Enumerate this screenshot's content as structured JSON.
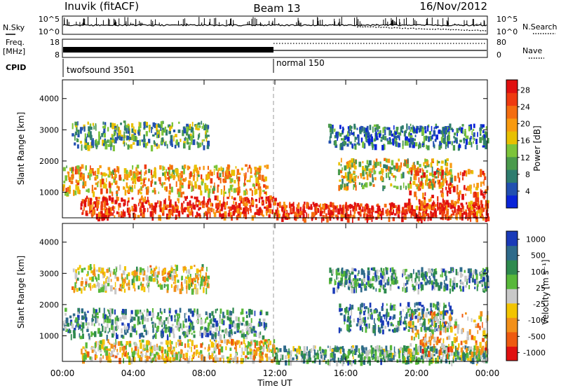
{
  "header": {
    "station": "Inuvik (fitACF)",
    "beam": "Beam 13",
    "date": "16/Nov/2012"
  },
  "strips": {
    "nsky_label": "N.Sky",
    "nsky_ticks": [
      "10^5",
      "10^0"
    ],
    "nsearch_label": "N.Search",
    "freq_label_1": "Freq.",
    "freq_label_2": "[MHz]",
    "freq_ticks": [
      "18",
      "8"
    ],
    "nave_label": "Nave",
    "nave_ticks": [
      "80",
      "0"
    ],
    "cpid_label": "CPID",
    "cpid_segments": [
      {
        "label": "twofsound 3501",
        "start_hour": 0,
        "end_hour": 12
      },
      {
        "label": "normal 150",
        "start_hour": 12,
        "end_hour": 24
      }
    ]
  },
  "chart_data": [
    {
      "type": "heatmap",
      "panel": "power",
      "ylabel": "Slant Range [km]",
      "ylim": [
        180,
        4600
      ],
      "yticks": [
        1000,
        2000,
        3000,
        4000
      ],
      "xlim_hours": [
        0,
        24
      ],
      "colorbar": {
        "label": "Power [dB]",
        "tick_labels": [
          "4",
          "8",
          "12",
          "16",
          "20",
          "24",
          "28"
        ],
        "colors": [
          "#0a24d8",
          "#2250b0",
          "#2e7c6e",
          "#4a9a4c",
          "#7cc43a",
          "#e8c000",
          "#f89a10",
          "#f46d10",
          "#ee3a10",
          "#e01010"
        ]
      },
      "echo_regions": [
        {
          "from_hour": 0.0,
          "to_hour": 11.5,
          "range_km": [
            1000,
            1900
          ],
          "level": 0.62
        },
        {
          "from_hour": 0.5,
          "to_hour": 8.2,
          "range_km": [
            2500,
            3300
          ],
          "level": 0.35
        },
        {
          "from_hour": 1.0,
          "to_hour": 12.0,
          "range_km": [
            250,
            900
          ],
          "level": 0.85
        },
        {
          "from_hour": 12.0,
          "to_hour": 24.0,
          "range_km": [
            200,
            700
          ],
          "level": 0.9
        },
        {
          "from_hour": 15.5,
          "to_hour": 22.0,
          "range_km": [
            1200,
            2100
          ],
          "level": 0.5
        },
        {
          "from_hour": 15.0,
          "to_hour": 24.0,
          "range_km": [
            2500,
            3200
          ],
          "level": 0.25
        },
        {
          "from_hour": 19.5,
          "to_hour": 24.0,
          "range_km": [
            400,
            1800
          ],
          "level": 0.8
        }
      ]
    },
    {
      "type": "heatmap",
      "panel": "velocity",
      "ylabel": "Slant Range [km]",
      "ylim": [
        180,
        4600
      ],
      "yticks": [
        1000,
        2000,
        3000,
        4000
      ],
      "xlim_hours": [
        0,
        24
      ],
      "xtick_labels": [
        "00:00",
        "04:00",
        "08:00",
        "12:00",
        "16:00",
        "20:00",
        "00:00"
      ],
      "xlabel": "Time UT",
      "colorbar": {
        "label": "Velocity [m s⁻¹]",
        "tick_labels": [
          "1000",
          "500",
          "100",
          "25",
          "-25",
          "-100",
          "-500",
          "-1000"
        ],
        "colors": [
          "#1a3ab8",
          "#2e6a8a",
          "#2e8a4e",
          "#58b83a",
          "#c8c8c8",
          "#f2c400",
          "#f2901a",
          "#ee5a10",
          "#e01010"
        ]
      },
      "echo_regions": [
        {
          "from_hour": 0.0,
          "to_hour": 11.5,
          "range_km": [
            1000,
            1900
          ],
          "level": 0.7
        },
        {
          "from_hour": 0.5,
          "to_hour": 8.2,
          "range_km": [
            2500,
            3300
          ],
          "level": 0.45
        },
        {
          "from_hour": 1.0,
          "to_hour": 12.0,
          "range_km": [
            250,
            900
          ],
          "level": 0.4
        },
        {
          "from_hour": 12.0,
          "to_hour": 24.0,
          "range_km": [
            200,
            700
          ],
          "level": 0.65
        },
        {
          "from_hour": 15.5,
          "to_hour": 22.0,
          "range_km": [
            1200,
            2100
          ],
          "level": 0.75
        },
        {
          "from_hour": 15.0,
          "to_hour": 24.0,
          "range_km": [
            2500,
            3200
          ],
          "level": 0.7
        },
        {
          "from_hour": 19.5,
          "to_hour": 24.0,
          "range_km": [
            400,
            1800
          ],
          "level": 0.35
        }
      ]
    }
  ]
}
